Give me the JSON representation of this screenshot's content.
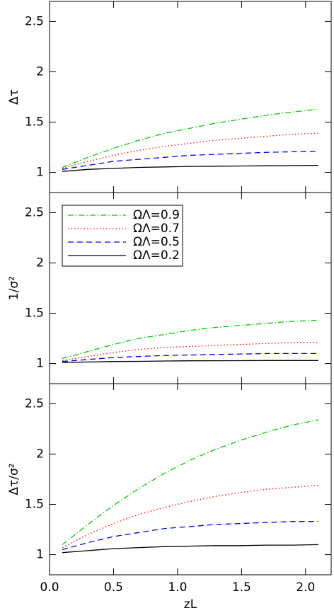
{
  "chart_data": [
    {
      "type": "line",
      "ylabel": "Δτ",
      "x": [
        0.1,
        0.3,
        0.5,
        0.7,
        0.9,
        1.1,
        1.3,
        1.5,
        1.7,
        1.9,
        2.1
      ],
      "xlim": [
        0,
        2.2
      ],
      "xticks": [
        0.0,
        0.5,
        1.0,
        1.5,
        2.0
      ],
      "ylim": [
        0.8,
        2.7
      ],
      "yticks": [
        1.0,
        1.5,
        2.0,
        2.5
      ],
      "series": [
        {
          "color": "#00cc00",
          "linestyle": "dashdot",
          "values": [
            1.05,
            1.15,
            1.24,
            1.32,
            1.39,
            1.44,
            1.49,
            1.53,
            1.57,
            1.6,
            1.63
          ]
        },
        {
          "color": "#ff0000",
          "linestyle": "dotted",
          "values": [
            1.04,
            1.11,
            1.17,
            1.22,
            1.26,
            1.29,
            1.32,
            1.34,
            1.36,
            1.38,
            1.39
          ]
        },
        {
          "color": "#0000ff",
          "linestyle": "dashed",
          "values": [
            1.03,
            1.07,
            1.11,
            1.13,
            1.15,
            1.17,
            1.18,
            1.19,
            1.2,
            1.205,
            1.21
          ]
        },
        {
          "color": "#000000",
          "linestyle": "solid",
          "values": [
            1.01,
            1.03,
            1.04,
            1.05,
            1.055,
            1.06,
            1.062,
            1.064,
            1.066,
            1.068,
            1.07
          ]
        }
      ]
    },
    {
      "type": "line",
      "ylabel": "1/σ²",
      "legend": "upper left",
      "x": [
        0.1,
        0.3,
        0.5,
        0.7,
        0.9,
        1.1,
        1.3,
        1.5,
        1.7,
        1.9,
        2.1
      ],
      "xlim": [
        0,
        2.2
      ],
      "xticks": [
        0.0,
        0.5,
        1.0,
        1.5,
        2.0
      ],
      "ylim": [
        0.8,
        2.7
      ],
      "yticks": [
        1.0,
        1.5,
        2.0,
        2.5
      ],
      "series": [
        {
          "name": "ΩΛ=0.9",
          "color": "#00cc00",
          "linestyle": "dashdot",
          "values": [
            1.05,
            1.12,
            1.19,
            1.25,
            1.29,
            1.33,
            1.36,
            1.38,
            1.4,
            1.42,
            1.43
          ]
        },
        {
          "name": "ΩΛ=0.7",
          "color": "#ff0000",
          "linestyle": "dotted",
          "values": [
            1.03,
            1.07,
            1.11,
            1.14,
            1.16,
            1.17,
            1.18,
            1.19,
            1.2,
            1.21,
            1.21
          ]
        },
        {
          "name": "ΩΛ=0.5",
          "color": "#0000ff",
          "linestyle": "dashed",
          "values": [
            1.02,
            1.04,
            1.06,
            1.07,
            1.08,
            1.085,
            1.09,
            1.095,
            1.1,
            1.1,
            1.1
          ]
        },
        {
          "name": "ΩΛ=0.2",
          "color": "#000000",
          "linestyle": "solid",
          "values": [
            1.01,
            1.015,
            1.02,
            1.022,
            1.025,
            1.027,
            1.028,
            1.029,
            1.03,
            1.03,
            1.03
          ]
        }
      ]
    },
    {
      "type": "line",
      "ylabel": "Δτ/σ²",
      "xlabel": "zL",
      "x": [
        0.1,
        0.3,
        0.5,
        0.7,
        0.9,
        1.1,
        1.3,
        1.5,
        1.7,
        1.9,
        2.1
      ],
      "xlim": [
        0,
        2.2
      ],
      "xticks": [
        0.0,
        0.5,
        1.0,
        1.5,
        2.0
      ],
      "ylim": [
        0.8,
        2.7
      ],
      "yticks": [
        1.0,
        1.5,
        2.0,
        2.5
      ],
      "series": [
        {
          "color": "#00cc00",
          "linestyle": "dashdot",
          "values": [
            1.1,
            1.3,
            1.49,
            1.66,
            1.81,
            1.94,
            2.05,
            2.14,
            2.22,
            2.29,
            2.34
          ]
        },
        {
          "color": "#ff0000",
          "linestyle": "dotted",
          "values": [
            1.07,
            1.2,
            1.31,
            1.4,
            1.47,
            1.53,
            1.58,
            1.62,
            1.65,
            1.67,
            1.69
          ]
        },
        {
          "color": "#0000ff",
          "linestyle": "dashed",
          "values": [
            1.05,
            1.12,
            1.18,
            1.22,
            1.26,
            1.28,
            1.3,
            1.31,
            1.32,
            1.33,
            1.33
          ]
        },
        {
          "color": "#000000",
          "linestyle": "solid",
          "values": [
            1.02,
            1.04,
            1.06,
            1.07,
            1.08,
            1.085,
            1.09,
            1.09,
            1.095,
            1.095,
            1.1
          ]
        }
      ]
    }
  ]
}
